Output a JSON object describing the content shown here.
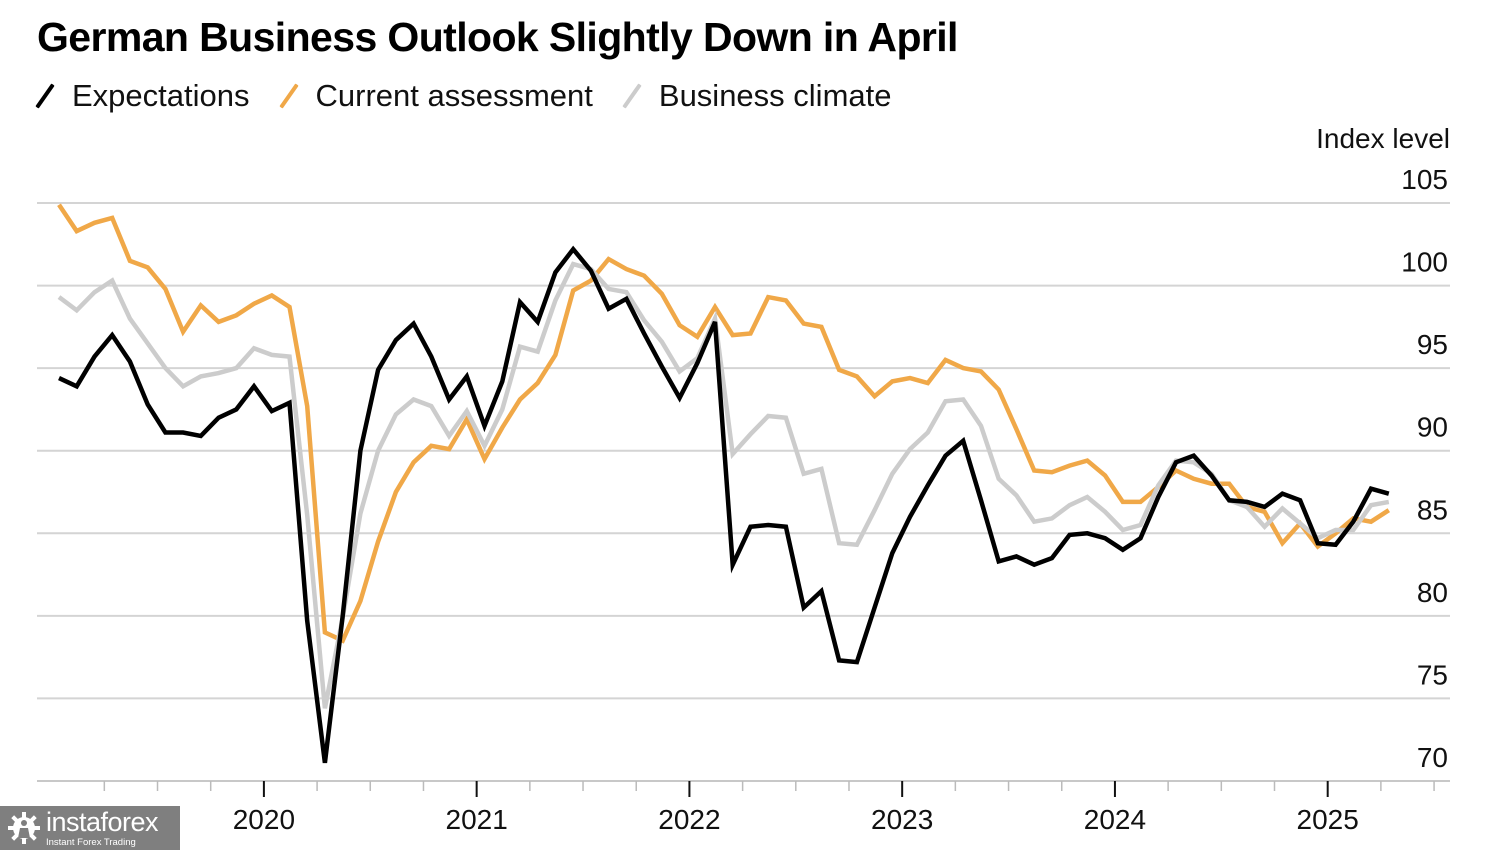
{
  "chart_data": {
    "type": "line",
    "title": "German Business Outlook Slightly Down in April",
    "xlabel": "",
    "ylabel": "Index level",
    "ylim": [
      70,
      105
    ],
    "yticks": [
      70,
      75,
      80,
      85,
      90,
      95,
      100,
      105
    ],
    "grid": true,
    "legend_position": "top-left",
    "x_tick_labels": [
      "2020",
      "2021",
      "2022",
      "2023",
      "2024",
      "2025"
    ],
    "x_start": "2019-01",
    "x_end": "2025-04",
    "frequency": "monthly",
    "x": [
      "2019-01",
      "2019-02",
      "2019-03",
      "2019-04",
      "2019-05",
      "2019-06",
      "2019-07",
      "2019-08",
      "2019-09",
      "2019-10",
      "2019-11",
      "2019-12",
      "2020-01",
      "2020-02",
      "2020-03",
      "2020-04",
      "2020-05",
      "2020-06",
      "2020-07",
      "2020-08",
      "2020-09",
      "2020-10",
      "2020-11",
      "2020-12",
      "2021-01",
      "2021-02",
      "2021-03",
      "2021-04",
      "2021-05",
      "2021-06",
      "2021-07",
      "2021-08",
      "2021-09",
      "2021-10",
      "2021-11",
      "2021-12",
      "2022-01",
      "2022-02",
      "2022-03",
      "2022-04",
      "2022-05",
      "2022-06",
      "2022-07",
      "2022-08",
      "2022-09",
      "2022-10",
      "2022-11",
      "2022-12",
      "2023-01",
      "2023-02",
      "2023-03",
      "2023-04",
      "2023-05",
      "2023-06",
      "2023-07",
      "2023-08",
      "2023-09",
      "2023-10",
      "2023-11",
      "2023-12",
      "2024-01",
      "2024-02",
      "2024-03",
      "2024-04",
      "2024-05",
      "2024-06",
      "2024-07",
      "2024-08",
      "2024-09",
      "2024-10",
      "2024-11",
      "2024-12",
      "2025-01",
      "2025-02",
      "2025-03",
      "2025-04"
    ],
    "series": [
      {
        "name": "Current assessment",
        "color": "#f0a848",
        "values": [
          104.9,
          103.3,
          103.8,
          104.1,
          101.5,
          101.1,
          99.8,
          97.2,
          98.8,
          97.8,
          98.2,
          98.9,
          99.4,
          98.7,
          92.7,
          79.0,
          78.5,
          80.9,
          84.5,
          87.5,
          89.3,
          90.3,
          90.1,
          91.9,
          89.5,
          91.4,
          93.1,
          94.1,
          95.8,
          99.7,
          100.3,
          101.6,
          101.0,
          100.6,
          99.5,
          97.6,
          96.9,
          98.7,
          97.0,
          97.1,
          99.3,
          99.1,
          97.7,
          97.5,
          94.9,
          94.5,
          93.3,
          94.2,
          94.4,
          94.1,
          95.5,
          95.0,
          94.8,
          93.7,
          91.3,
          88.8,
          88.7,
          89.1,
          89.4,
          88.5,
          86.9,
          86.9,
          87.8,
          88.8,
          88.3,
          88.0,
          88.0,
          86.6,
          86.3,
          84.4,
          85.6,
          84.2,
          85.0,
          85.9,
          85.7,
          86.4
        ]
      },
      {
        "name": "Business climate",
        "color": "#cccccc",
        "values": [
          99.3,
          98.5,
          99.6,
          100.3,
          98.0,
          96.5,
          95.0,
          93.9,
          94.5,
          94.7,
          95.0,
          96.2,
          95.8,
          95.7,
          86.1,
          74.4,
          79.9,
          86.2,
          90.0,
          92.2,
          93.1,
          92.7,
          90.9,
          92.4,
          90.3,
          92.5,
          96.3,
          96.0,
          99.1,
          101.3,
          101.0,
          99.8,
          99.6,
          97.9,
          96.6,
          94.8,
          95.6,
          98.0,
          89.8,
          91.0,
          92.1,
          92.0,
          88.6,
          88.9,
          84.4,
          84.3,
          86.4,
          88.6,
          90.1,
          91.1,
          93.0,
          93.1,
          91.5,
          88.3,
          87.3,
          85.7,
          85.9,
          86.7,
          87.2,
          86.3,
          85.2,
          85.5,
          87.9,
          89.4,
          89.3,
          88.6,
          87.0,
          86.6,
          85.4,
          86.5,
          85.6,
          84.7,
          85.2,
          85.2,
          86.7,
          86.9
        ]
      },
      {
        "name": "Expectations",
        "color": "#000000",
        "values": [
          94.4,
          93.9,
          95.7,
          97.0,
          95.4,
          92.8,
          91.1,
          91.1,
          90.9,
          92.0,
          92.5,
          93.9,
          92.4,
          92.9,
          79.7,
          71.1,
          80.0,
          90.0,
          94.9,
          96.7,
          97.7,
          95.7,
          93.1,
          94.5,
          91.5,
          94.2,
          99.0,
          97.8,
          100.8,
          102.2,
          100.9,
          98.6,
          99.2,
          97.1,
          95.1,
          93.2,
          95.3,
          97.8,
          83.1,
          85.4,
          85.5,
          85.4,
          80.5,
          81.5,
          77.3,
          77.2,
          80.5,
          83.8,
          86.0,
          87.9,
          89.7,
          90.6,
          87.0,
          83.3,
          83.6,
          83.1,
          83.5,
          84.9,
          85.0,
          84.7,
          84.0,
          84.7,
          87.2,
          89.3,
          89.7,
          88.5,
          87.0,
          86.9,
          86.6,
          87.4,
          87.0,
          84.4,
          84.3,
          85.7,
          87.7,
          87.4
        ]
      }
    ],
    "legend": [
      {
        "name": "Expectations",
        "color": "#000000"
      },
      {
        "name": "Current assessment",
        "color": "#f0a848"
      },
      {
        "name": "Business climate",
        "color": "#cccccc"
      }
    ]
  },
  "watermark": {
    "brand": "instaforex",
    "tagline": "Instant Forex Trading",
    "icon": "gear-person-icon"
  },
  "colors": {
    "grid": "#d4d4d4",
    "axis": "#c8c8c8",
    "tick_major": "#111111",
    "tick_minor": "#bbbbbb"
  }
}
